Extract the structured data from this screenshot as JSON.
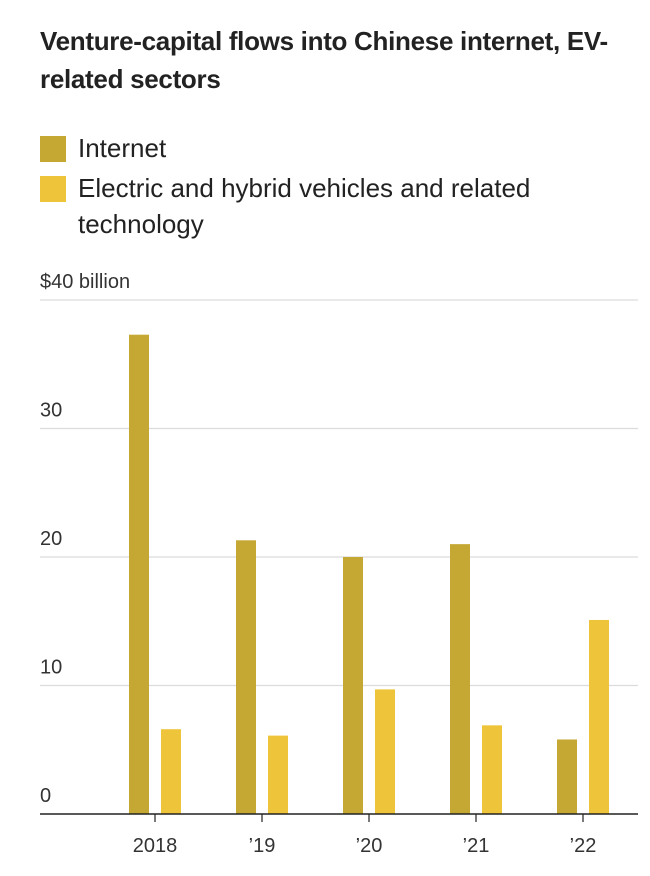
{
  "chart_data": {
    "type": "bar",
    "title": "Venture-capital flows into Chinese internet, EV-related sectors",
    "categories": [
      "2018",
      "’19",
      "’20",
      "’21",
      "’22"
    ],
    "series": [
      {
        "name": "Internet",
        "values": [
          37.3,
          21.3,
          20.0,
          21.0,
          5.8
        ],
        "color": "#C4A833"
      },
      {
        "name": "Electric and hybrid vehicles and related technology",
        "values": [
          6.6,
          6.1,
          9.7,
          6.9,
          15.1
        ],
        "color": "#EEC53A"
      }
    ],
    "ylim": [
      0,
      40
    ],
    "yticks": [
      {
        "value": 0,
        "label": "0"
      },
      {
        "value": 10,
        "label": "10"
      },
      {
        "value": 20,
        "label": "20"
      },
      {
        "value": 30,
        "label": "30"
      },
      {
        "value": 40,
        "label": "$40 billion"
      }
    ],
    "grid": true,
    "legend_position": "top-left"
  }
}
